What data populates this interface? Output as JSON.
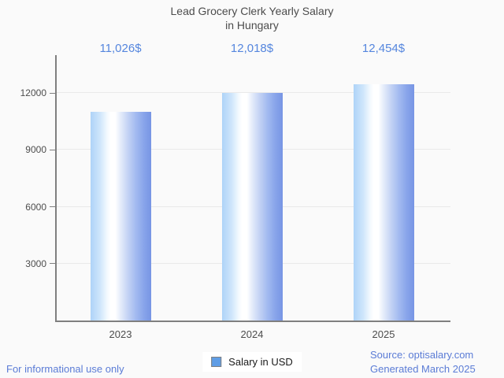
{
  "header": {
    "title_line1": "Lead Grocery Clerk Yearly Salary",
    "title_line2": "in Hungary"
  },
  "chart_data": {
    "type": "bar",
    "title": "Lead Grocery Clerk Yearly Salary in Hungary",
    "categories": [
      "2023",
      "2024",
      "2025"
    ],
    "series": [
      {
        "name": "Salary in USD",
        "values": [
          11026,
          12018,
          12454
        ]
      }
    ],
    "value_labels": [
      "11,026$",
      "12,018$",
      "12,454$"
    ],
    "xlabel": "",
    "ylabel": "",
    "ylim": [
      0,
      14000
    ],
    "yticks": [
      3000,
      6000,
      9000,
      12000
    ],
    "ytick_labels": [
      "3000",
      "6000",
      "9000",
      "12000"
    ],
    "grid": true,
    "legend_position": "bottom"
  },
  "legend": {
    "label": "Salary in USD",
    "swatch_color": "#5f9de5"
  },
  "footer": {
    "left_note": "For informational use only",
    "source": "Source: optisalary.com",
    "generated": "Generated March 2025"
  },
  "colors": {
    "background": "#fafafa",
    "title_text": "#4c4c4c",
    "axis_line": "#7f7f7f",
    "gridline": "#e9e9e9",
    "tick_text": "#4d4d4d",
    "value_label_text": "#5586de",
    "footer_text": "#5b7cd6",
    "bar_gradient_left": "#aed3f8",
    "bar_gradient_mid": "#ffffff",
    "bar_gradient_right": "#7795e4"
  }
}
